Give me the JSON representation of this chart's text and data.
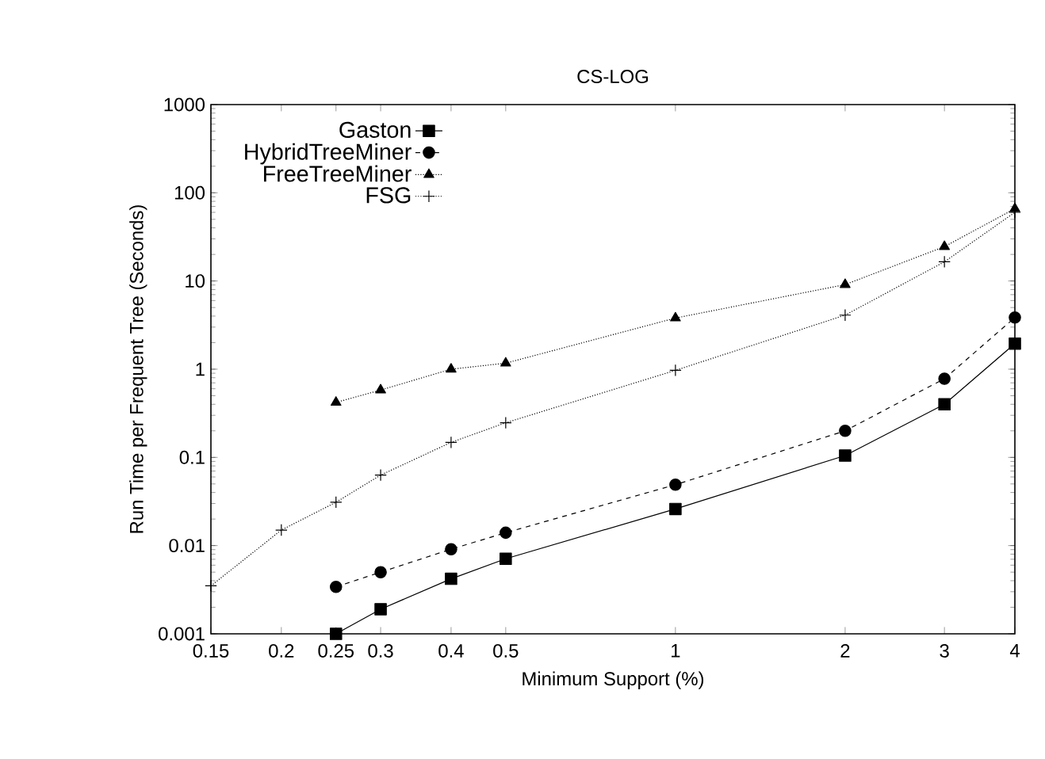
{
  "chart_data": {
    "type": "line",
    "title": "CS-LOG",
    "xlabel": "Minimum Support (%)",
    "ylabel": "Run Time per Frequent Tree (Seconds)",
    "log": "xy",
    "legend": "top left",
    "grid": false,
    "xlim": [
      0.15,
      4
    ],
    "xticks": [
      0.15,
      0.2,
      0.25,
      0.3,
      0.4,
      0.5,
      1,
      2,
      3,
      4
    ],
    "ylim": [
      0.001,
      1000
    ],
    "yticks": [
      0.001,
      0.01,
      0.1,
      1,
      10,
      100,
      1000
    ],
    "series": [
      {
        "name": "Gaston",
        "color": "#000000",
        "marker": "square",
        "line_style": "solid",
        "x": [
          0.25,
          0.3,
          0.4,
          0.5,
          1,
          2,
          3,
          4
        ],
        "values": [
          0.001,
          0.0019,
          0.0042,
          0.0071,
          0.026,
          0.105,
          0.4,
          1.95
        ]
      },
      {
        "name": "HybridTreeMiner",
        "color": "#000000",
        "marker": "circle",
        "line_style": "dashed",
        "x": [
          0.25,
          0.3,
          0.4,
          0.5,
          1,
          2,
          3,
          4
        ],
        "values": [
          0.0034,
          0.005,
          0.0091,
          0.014,
          0.049,
          0.2,
          0.78,
          3.85
        ]
      },
      {
        "name": "FreeTreeMiner",
        "color": "#000000",
        "marker": "triangle",
        "line_style": "dotted",
        "x": [
          0.25,
          0.3,
          0.4,
          0.5,
          1,
          2,
          3,
          4
        ],
        "values": [
          0.42,
          0.58,
          1.0,
          1.17,
          3.8,
          9.1,
          24.5,
          66
        ]
      },
      {
        "name": "FSG",
        "color": "#000000",
        "marker": "cross",
        "line_style": "dotted",
        "x": [
          0.15,
          0.2,
          0.25,
          0.3,
          0.4,
          0.5,
          1,
          2,
          3,
          4
        ],
        "values": [
          0.0035,
          0.015,
          0.031,
          0.063,
          0.148,
          0.247,
          0.97,
          4.1,
          16.5,
          60
        ]
      }
    ]
  }
}
